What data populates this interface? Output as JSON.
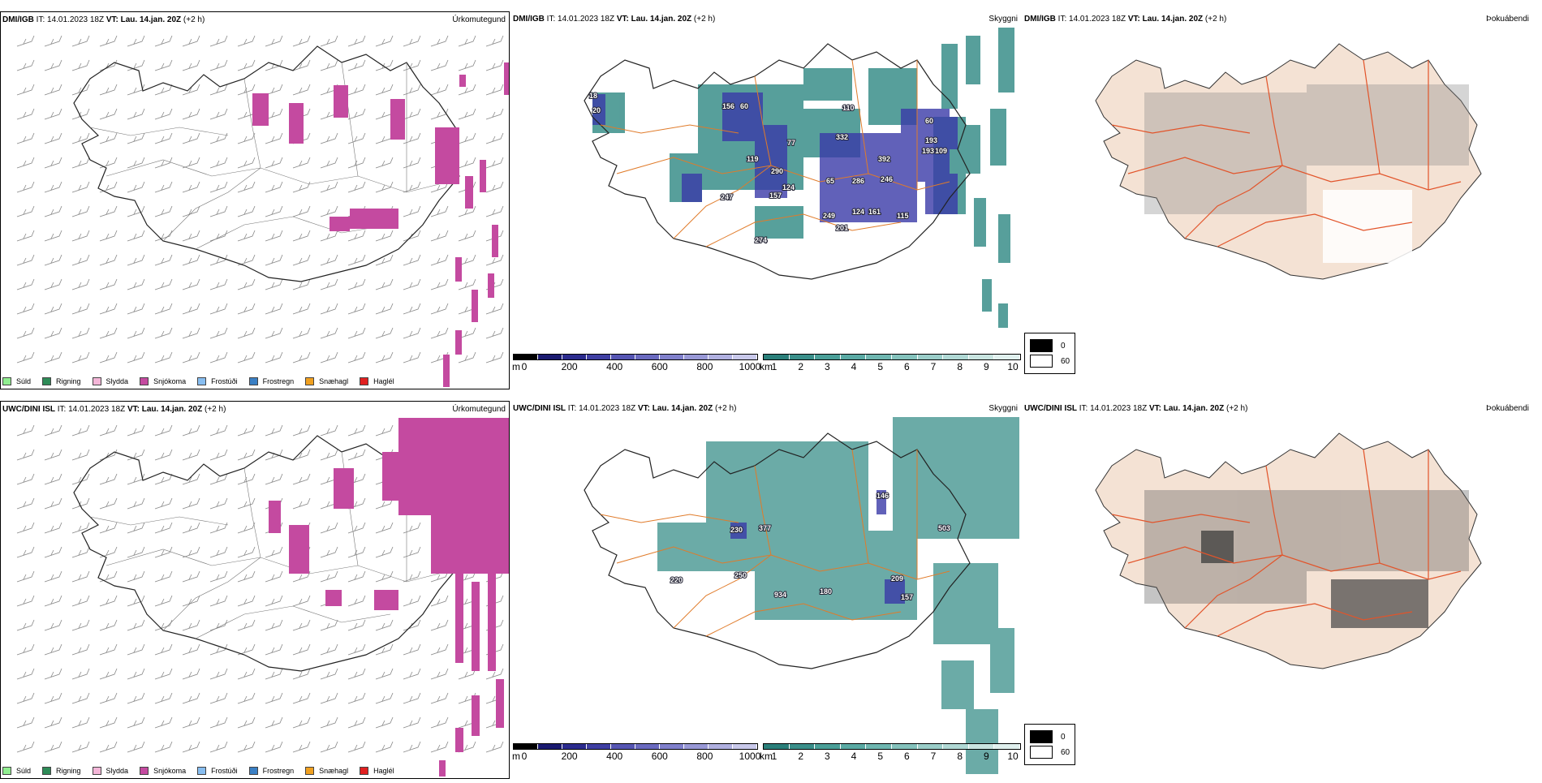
{
  "panels": [
    {
      "model": "DMI/IGB",
      "it_label": "IT:",
      "it": "14.01.2023 18Z",
      "vt_label": "VT:",
      "vt": "Lau. 14.jan. 20Z",
      "lead": "(+2 h)",
      "title": "Úrkomutegund"
    },
    {
      "model": "DMI/IGB",
      "it_label": "IT:",
      "it": "14.01.2023 18Z",
      "vt_label": "VT:",
      "vt": "Lau. 14.jan. 20Z",
      "lead": "(+2 h)",
      "title": "Skyggni"
    },
    {
      "model": "DMI/IGB",
      "it_label": "IT:",
      "it": "14.01.2023 18Z",
      "vt_label": "VT:",
      "vt": "Lau. 14.jan. 20Z",
      "lead": "(+2 h)",
      "title": "Þokuábendi"
    },
    {
      "model": "UWC/DINI ISL",
      "it_label": "IT:",
      "it": "14.01.2023 18Z",
      "vt_label": "VT:",
      "vt": "Lau. 14.jan. 20Z",
      "lead": "(+2 h)",
      "title": "Úrkomutegund"
    },
    {
      "model": "UWC/DINI ISL",
      "it_label": "IT:",
      "it": "14.01.2023 18Z",
      "vt_label": "VT:",
      "vt": "Lau. 14.jan. 20Z",
      "lead": "(+2 h)",
      "title": "Skyggni"
    },
    {
      "model": "UWC/DINI ISL",
      "it_label": "IT:",
      "it": "14.01.2023 18Z",
      "vt_label": "VT:",
      "vt": "Lau. 14.jan. 20Z",
      "lead": "(+2 h)",
      "title": "Þokuábendi"
    }
  ],
  "precip_legend": [
    {
      "label": "Súld",
      "color": "#90ee90"
    },
    {
      "label": "Rigning",
      "color": "#2e8b57"
    },
    {
      "label": "Slydda",
      "color": "#f4b6d8"
    },
    {
      "label": "Snjókoma",
      "color": "#c44aa0"
    },
    {
      "label": "Frostúði",
      "color": "#87bdf0"
    },
    {
      "label": "Frostregn",
      "color": "#3a7fc4"
    },
    {
      "label": "Snæhagl",
      "color": "#f0a020"
    },
    {
      "label": "Haglél",
      "color": "#e02020"
    }
  ],
  "scale_m": {
    "unit": "m",
    "ticks": [
      "0",
      "200",
      "400",
      "600",
      "800",
      "1000"
    ]
  },
  "scale_km": {
    "unit": "km",
    "ticks": [
      "1",
      "2",
      "3",
      "4",
      "5",
      "6",
      "7",
      "8",
      "9",
      "10"
    ]
  },
  "fog_legend": {
    "items": [
      "0",
      "60"
    ]
  },
  "vis_labels_top": [
    "18",
    "20",
    "156",
    "60",
    "110",
    "77",
    "332",
    "119",
    "193",
    "392",
    "60",
    "193",
    "109",
    "290",
    "65",
    "286",
    "246",
    "124",
    "157",
    "247",
    "249",
    "124",
    "161",
    "115",
    "201",
    "274"
  ],
  "vis_labels_bottom": [
    "146",
    "503",
    "230",
    "377",
    "220",
    "250",
    "934",
    "180",
    "209",
    "157"
  ]
}
